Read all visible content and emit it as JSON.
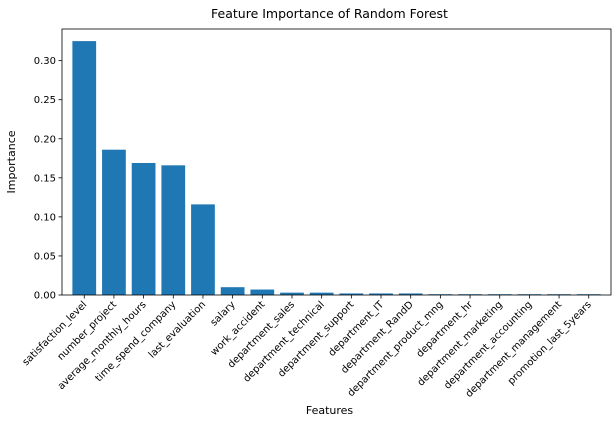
{
  "chart_data": {
    "type": "bar",
    "title": "Feature Importance of Random Forest",
    "xlabel": "Features",
    "ylabel": "Importance",
    "categories": [
      "satisfaction_level",
      "number_project",
      "average_monthly_hours",
      "time_spend_company",
      "last_evaluation",
      "salary",
      "work_accident",
      "department_sales",
      "department_technical",
      "department_support",
      "department_IT",
      "department_RandD",
      "department_product_mng",
      "department_hr",
      "department_marketing",
      "department_accounting",
      "department_management",
      "promotion_last_5years"
    ],
    "values": [
      0.325,
      0.186,
      0.169,
      0.166,
      0.116,
      0.01,
      0.007,
      0.003,
      0.003,
      0.002,
      0.002,
      0.002,
      0.001,
      0.001,
      0.001,
      0.001,
      0.001,
      0.001
    ],
    "ylim": [
      0,
      0.3405
    ],
    "yticks": [
      "0.00",
      "0.05",
      "0.10",
      "0.15",
      "0.20",
      "0.25",
      "0.30"
    ],
    "grid": false,
    "bar_color": "#1f77b4"
  }
}
